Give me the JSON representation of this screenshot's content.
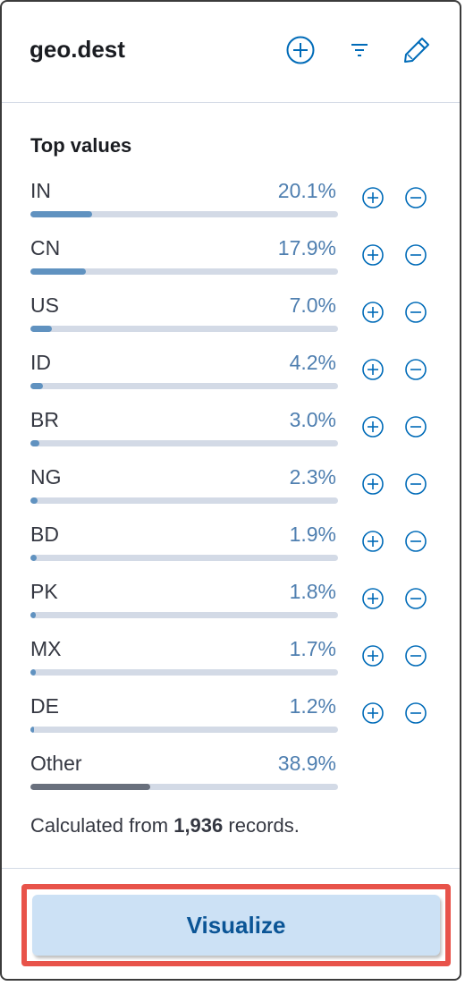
{
  "header": {
    "field_name": "geo.dest",
    "icons": [
      "plus-in-circle-icon",
      "filter-icon",
      "pencil-icon"
    ]
  },
  "top_values": {
    "title": "Top values",
    "rows": [
      {
        "label": "IN",
        "percent": "20.1%",
        "fraction": 0.201
      },
      {
        "label": "CN",
        "percent": "17.9%",
        "fraction": 0.179
      },
      {
        "label": "US",
        "percent": "7.0%",
        "fraction": 0.07
      },
      {
        "label": "ID",
        "percent": "4.2%",
        "fraction": 0.042
      },
      {
        "label": "BR",
        "percent": "3.0%",
        "fraction": 0.03
      },
      {
        "label": "NG",
        "percent": "2.3%",
        "fraction": 0.023
      },
      {
        "label": "BD",
        "percent": "1.9%",
        "fraction": 0.019
      },
      {
        "label": "PK",
        "percent": "1.8%",
        "fraction": 0.018
      },
      {
        "label": "MX",
        "percent": "1.7%",
        "fraction": 0.017
      },
      {
        "label": "DE",
        "percent": "1.2%",
        "fraction": 0.012
      }
    ],
    "other": {
      "label": "Other",
      "percent": "38.9%",
      "fraction": 0.389
    }
  },
  "footnote": {
    "prefix": "Calculated from",
    "count": "1,936",
    "suffix": "records."
  },
  "footer": {
    "visualize_label": "Visualize"
  },
  "colors": {
    "accent": "#006bb8",
    "bar_fill": "#6092c0",
    "bar_other": "#69707d",
    "bar_track": "#d3dae6",
    "percent_text": "#4f7fb0",
    "highlight": "#e8534a",
    "button_bg": "#cce1f5"
  }
}
